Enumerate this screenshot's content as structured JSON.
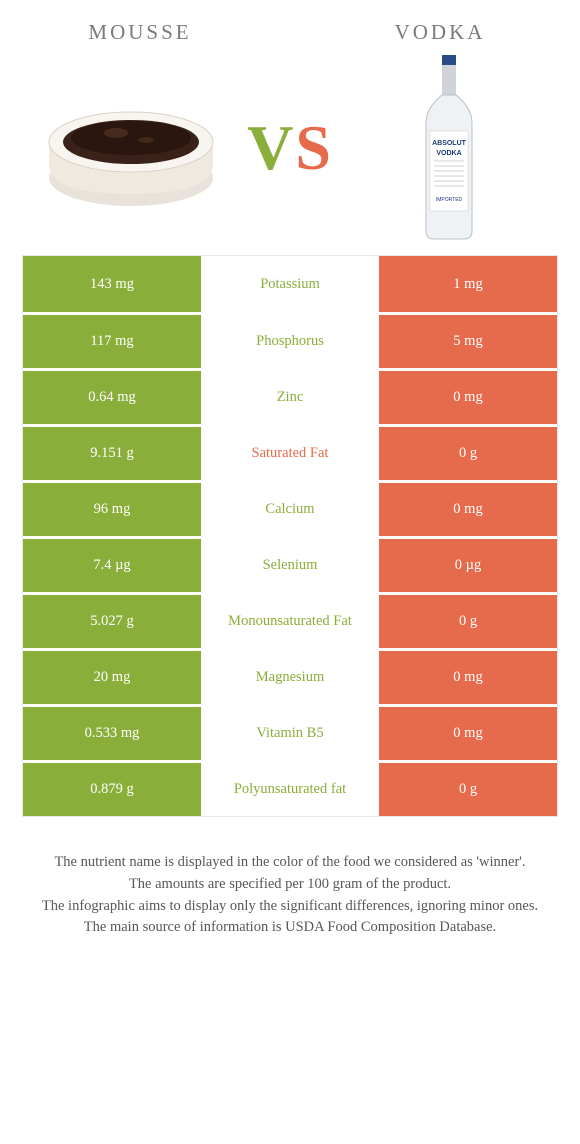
{
  "colors": {
    "left": "#8aae3a",
    "right": "#e66a4c",
    "text": "#555555",
    "row_gap": "#ffffff"
  },
  "header": {
    "left_title": "MOUSSE",
    "right_title": "VODKA",
    "vs_v": "V",
    "vs_s": "S"
  },
  "rows": [
    {
      "left": "143 mg",
      "label": "Potassium",
      "right": "1 mg",
      "winner": "left"
    },
    {
      "left": "117 mg",
      "label": "Phosphorus",
      "right": "5 mg",
      "winner": "left"
    },
    {
      "left": "0.64 mg",
      "label": "Zinc",
      "right": "0 mg",
      "winner": "left"
    },
    {
      "left": "9.151 g",
      "label": "Saturated Fat",
      "right": "0 g",
      "winner": "right"
    },
    {
      "left": "96 mg",
      "label": "Calcium",
      "right": "0 mg",
      "winner": "left"
    },
    {
      "left": "7.4 µg",
      "label": "Selenium",
      "right": "0 µg",
      "winner": "left"
    },
    {
      "left": "5.027 g",
      "label": "Monounsaturated Fat",
      "right": "0 g",
      "winner": "left"
    },
    {
      "left": "20 mg",
      "label": "Magnesium",
      "right": "0 mg",
      "winner": "left"
    },
    {
      "left": "0.533 mg",
      "label": "Vitamin B5",
      "right": "0 mg",
      "winner": "left"
    },
    {
      "left": "0.879 g",
      "label": "Polyunsaturated fat",
      "right": "0 g",
      "winner": "left"
    }
  ],
  "notes": [
    "The nutrient name is displayed in the color of the food we considered as 'winner'.",
    "The amounts are specified per 100 gram of the product.",
    "The infographic aims to display only the significant differences, ignoring minor ones.",
    "The main source of information is USDA Food Composition Database."
  ]
}
